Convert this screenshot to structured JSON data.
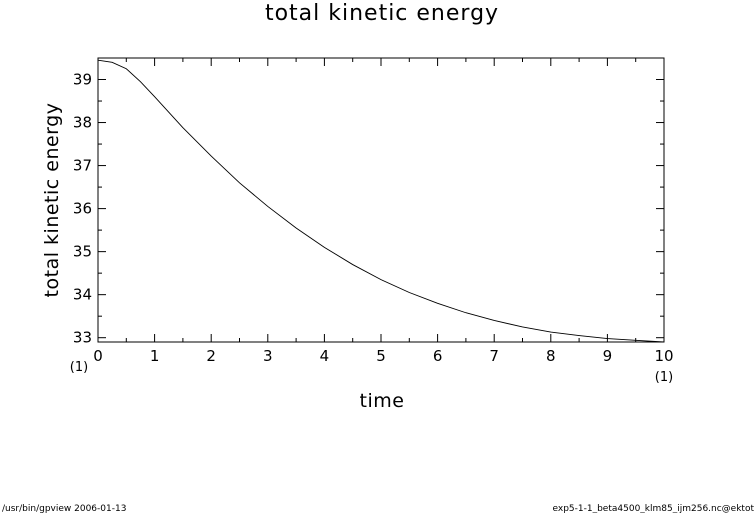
{
  "chart_data": {
    "type": "line",
    "title": "total kinetic energy",
    "xlabel": "time",
    "ylabel": "total kinetic energy",
    "x_unit": "(1)",
    "y_unit": "(1)",
    "xlim": [
      0,
      10
    ],
    "ylim": [
      32.9,
      39.5
    ],
    "xticks": [
      "0",
      "1",
      "2",
      "3",
      "4",
      "5",
      "6",
      "7",
      "8",
      "9",
      "10"
    ],
    "yticks": [
      "33",
      "34",
      "35",
      "36",
      "37",
      "38",
      "39"
    ],
    "x_minor_step": 0.5,
    "y_minor_step": 0.5,
    "grid": false,
    "series": [
      {
        "x": [
          0,
          0.25,
          0.5,
          0.75,
          1,
          1.5,
          2,
          2.5,
          3,
          3.5,
          4,
          4.5,
          5,
          5.5,
          6,
          6.5,
          7,
          7.5,
          8,
          8.5,
          9,
          9.5,
          10
        ],
        "y": [
          39.45,
          39.4,
          39.25,
          38.95,
          38.6,
          37.88,
          37.22,
          36.6,
          36.05,
          35.55,
          35.1,
          34.7,
          34.35,
          34.05,
          33.8,
          33.58,
          33.4,
          33.25,
          33.13,
          33.05,
          32.98,
          32.94,
          32.9
        ]
      }
    ]
  },
  "footer": {
    "left": "/usr/bin/gpview   2006-01-13",
    "right": "exp5-1-1_beta4500_klm85_ijm256.nc@ektot"
  }
}
